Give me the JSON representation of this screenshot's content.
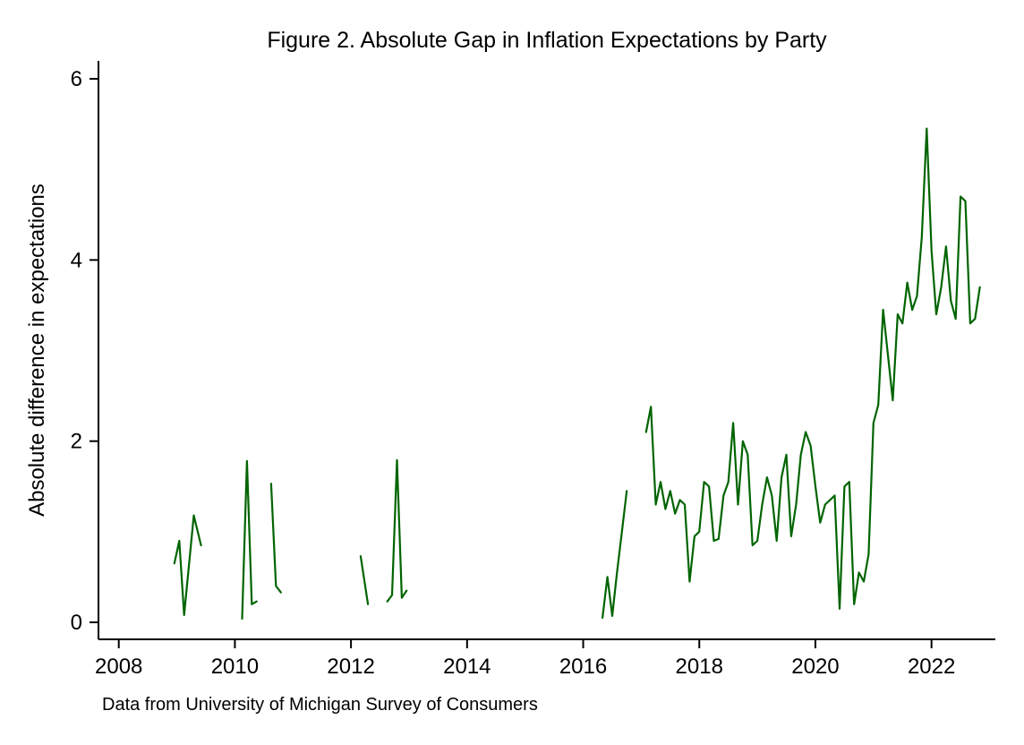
{
  "figure": {
    "title": "Figure 2. Absolute Gap in Inflation Expectations by Party",
    "ylabel": "Absolute difference in expectations",
    "xlabel": "",
    "caption": "Data from University of Michigan Survey of Consumers"
  },
  "chart_data": {
    "type": "line",
    "title": "Figure 2. Absolute Gap in Inflation Expectations by Party",
    "ylabel": "Absolute difference in expectations",
    "xlabel": "",
    "caption": "Data from University of Michigan Survey of Consumers",
    "line_color": "#006400",
    "axis_color": "#000000",
    "background_color": "#ffffff",
    "grid": false,
    "legend": "none",
    "x_ticks": [
      2008,
      2010,
      2012,
      2014,
      2016,
      2018,
      2020,
      2022
    ],
    "y_ticks": [
      0,
      2,
      4,
      6
    ],
    "xlim": [
      2007.65,
      2023.1
    ],
    "ylim": [
      0,
      6
    ],
    "series": [
      {
        "segments": [
          [
            [
              2008.958,
              0.65
            ],
            [
              2009.042,
              0.9
            ],
            [
              2009.125,
              0.08
            ],
            [
              2009.292,
              1.18
            ],
            [
              2009.417,
              0.85
            ]
          ],
          [
            [
              2010.125,
              0.04
            ],
            [
              2010.208,
              1.78
            ],
            [
              2010.292,
              0.2
            ],
            [
              2010.375,
              0.23
            ]
          ],
          [
            [
              2010.625,
              1.53
            ],
            [
              2010.708,
              0.4
            ],
            [
              2010.792,
              0.33
            ]
          ],
          [
            [
              2012.167,
              0.73
            ],
            [
              2012.292,
              0.2
            ]
          ],
          [
            [
              2012.625,
              0.23
            ],
            [
              2012.708,
              0.3
            ],
            [
              2012.792,
              1.79
            ],
            [
              2012.875,
              0.27
            ],
            [
              2012.958,
              0.35
            ]
          ],
          [
            [
              2016.333,
              0.05
            ],
            [
              2016.417,
              0.5
            ],
            [
              2016.5,
              0.07
            ],
            [
              2016.583,
              0.55
            ],
            [
              2016.667,
              1.0
            ],
            [
              2016.75,
              1.45
            ]
          ],
          [
            [
              2017.083,
              2.1
            ],
            [
              2017.167,
              2.38
            ],
            [
              2017.25,
              1.3
            ],
            [
              2017.333,
              1.55
            ],
            [
              2017.417,
              1.25
            ],
            [
              2017.5,
              1.45
            ],
            [
              2017.583,
              1.2
            ],
            [
              2017.667,
              1.35
            ],
            [
              2017.75,
              1.3
            ],
            [
              2017.833,
              0.45
            ],
            [
              2017.917,
              0.95
            ],
            [
              2018.0,
              1.0
            ],
            [
              2018.083,
              1.55
            ],
            [
              2018.167,
              1.5
            ],
            [
              2018.25,
              0.9
            ],
            [
              2018.333,
              0.92
            ],
            [
              2018.417,
              1.4
            ],
            [
              2018.5,
              1.55
            ],
            [
              2018.583,
              2.2
            ],
            [
              2018.667,
              1.3
            ],
            [
              2018.75,
              2.0
            ],
            [
              2018.833,
              1.85
            ],
            [
              2018.917,
              0.85
            ],
            [
              2019.0,
              0.9
            ],
            [
              2019.083,
              1.3
            ],
            [
              2019.167,
              1.6
            ],
            [
              2019.25,
              1.4
            ],
            [
              2019.333,
              0.9
            ],
            [
              2019.417,
              1.6
            ],
            [
              2019.5,
              1.85
            ],
            [
              2019.583,
              0.95
            ],
            [
              2019.667,
              1.3
            ],
            [
              2019.75,
              1.85
            ],
            [
              2019.833,
              2.1
            ],
            [
              2019.917,
              1.95
            ],
            [
              2020.0,
              1.5
            ],
            [
              2020.083,
              1.1
            ],
            [
              2020.167,
              1.3
            ],
            [
              2020.25,
              1.35
            ],
            [
              2020.333,
              1.4
            ],
            [
              2020.417,
              0.15
            ],
            [
              2020.5,
              1.5
            ],
            [
              2020.583,
              1.55
            ],
            [
              2020.667,
              0.2
            ],
            [
              2020.75,
              0.55
            ],
            [
              2020.833,
              0.45
            ],
            [
              2020.917,
              0.75
            ],
            [
              2021.0,
              2.2
            ],
            [
              2021.083,
              2.4
            ],
            [
              2021.167,
              3.45
            ],
            [
              2021.25,
              2.95
            ],
            [
              2021.333,
              2.45
            ],
            [
              2021.417,
              3.4
            ],
            [
              2021.5,
              3.3
            ],
            [
              2021.583,
              3.75
            ],
            [
              2021.667,
              3.45
            ],
            [
              2021.75,
              3.6
            ],
            [
              2021.833,
              4.25
            ],
            [
              2021.917,
              5.45
            ],
            [
              2022.0,
              4.1
            ],
            [
              2022.083,
              3.4
            ],
            [
              2022.167,
              3.7
            ],
            [
              2022.25,
              4.15
            ],
            [
              2022.333,
              3.55
            ],
            [
              2022.417,
              3.35
            ],
            [
              2022.5,
              4.7
            ],
            [
              2022.583,
              4.65
            ],
            [
              2022.667,
              3.3
            ],
            [
              2022.75,
              3.35
            ],
            [
              2022.833,
              3.7
            ]
          ]
        ]
      }
    ]
  }
}
